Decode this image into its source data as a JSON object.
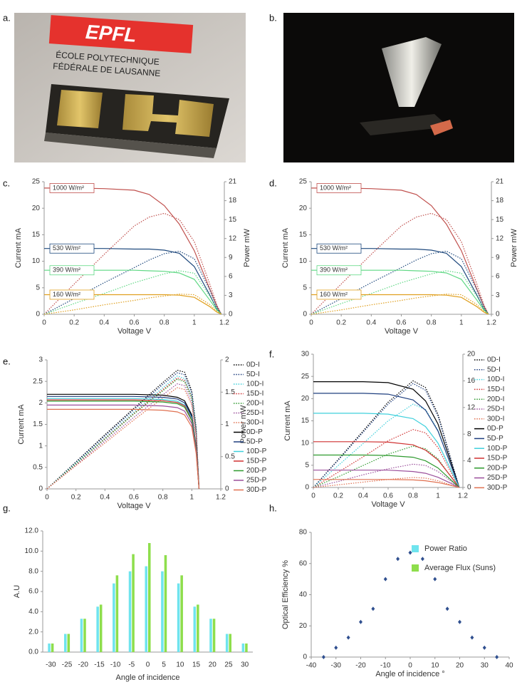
{
  "images": [
    {
      "label": "a.",
      "texts": [
        "EPFL",
        "ÉCOLE POLYTECHNIQUE",
        "FÉDÉRALE DE LAUSANNE"
      ]
    },
    {
      "label": "b."
    }
  ],
  "chart_data": [
    {
      "type": "line",
      "label": "c.",
      "xlabel": "Voltage  V",
      "ylabel": "Current mA",
      "y2label": "Power mW",
      "legend": false,
      "xlim": [
        0,
        1.2
      ],
      "xticks": [
        0,
        0.2,
        0.4,
        0.6,
        0.8,
        1,
        1.2
      ],
      "ylim": [
        0,
        25
      ],
      "yticks": [
        0,
        5,
        10,
        15,
        20,
        25
      ],
      "y2lim": [
        0,
        21
      ],
      "y2ticks": [
        0,
        3,
        6,
        9,
        12,
        15,
        18,
        21
      ],
      "x": [
        0,
        0.2,
        0.4,
        0.6,
        0.7,
        0.8,
        0.9,
        1.0,
        1.1,
        1.15,
        1.18
      ],
      "series": [
        {
          "name": "1000 W/m²",
          "color": "#c0504d",
          "values": [
            23.8,
            23.8,
            23.7,
            23.4,
            22.6,
            20.5,
            17,
            12,
            5,
            1.5,
            0
          ]
        },
        {
          "color": "#c0504d",
          "dash": true,
          "axis": "y2",
          "values": [
            0,
            4.8,
            9.5,
            14,
            15.4,
            16,
            15,
            11.5,
            5,
            1.5,
            0
          ]
        },
        {
          "name": "530 W/m²",
          "color": "#1f497d",
          "values": [
            12.4,
            12.4,
            12.4,
            12.3,
            12.3,
            12.1,
            11.5,
            9,
            3.8,
            1,
            0
          ]
        },
        {
          "color": "#1f497d",
          "dash": true,
          "axis": "y2",
          "values": [
            0,
            2.5,
            5,
            7.4,
            8.6,
            9.6,
            10,
            8.8,
            4,
            1.2,
            0
          ]
        },
        {
          "name": "390 W/m²",
          "color": "#5fd884",
          "values": [
            8.3,
            8.3,
            8.3,
            8.3,
            8.2,
            8.1,
            7.8,
            6.6,
            2.8,
            0.8,
            0
          ]
        },
        {
          "color": "#5fd884",
          "dash": true,
          "axis": "y2",
          "values": [
            0,
            1.7,
            3.3,
            5,
            5.7,
            6.4,
            6.9,
            6.5,
            3,
            0.9,
            0
          ]
        },
        {
          "name": "160 W/m²",
          "color": "#e0a020",
          "values": [
            3.7,
            3.7,
            3.7,
            3.7,
            3.7,
            3.7,
            3.6,
            3.2,
            1.5,
            0.4,
            0
          ]
        },
        {
          "color": "#e0a020",
          "dash": true,
          "axis": "y2",
          "values": [
            0,
            0.7,
            1.5,
            2.2,
            2.6,
            2.9,
            3.2,
            3.1,
            1.6,
            0.5,
            0
          ]
        }
      ]
    },
    {
      "type": "line",
      "label": "d.",
      "xlabel": "Voltage  V",
      "ylabel": "Current mA",
      "y2label": "Power mW",
      "legend": false,
      "xlim": [
        0,
        1.2
      ],
      "xticks": [
        0,
        0.2,
        0.4,
        0.6,
        0.8,
        1,
        1.2
      ],
      "ylim": [
        0,
        25
      ],
      "yticks": [
        0,
        5,
        10,
        15,
        20,
        25
      ],
      "y2lim": [
        0,
        21
      ],
      "y2ticks": [
        0,
        3,
        6,
        9,
        12,
        15,
        18,
        21
      ],
      "x": [
        0,
        0.2,
        0.4,
        0.6,
        0.7,
        0.8,
        0.9,
        1.0,
        1.1,
        1.15,
        1.18
      ],
      "series": [
        {
          "name": "1000 W/m²",
          "color": "#c0504d",
          "values": [
            23.8,
            23.8,
            23.7,
            23.4,
            22.6,
            20.5,
            17,
            12,
            5,
            1.5,
            0
          ]
        },
        {
          "color": "#c0504d",
          "dash": true,
          "axis": "y2",
          "values": [
            0,
            4.8,
            9.5,
            14,
            15.4,
            16,
            15,
            11.5,
            5,
            1.5,
            0
          ]
        },
        {
          "name": "530 W/m²",
          "color": "#1f497d",
          "values": [
            12.4,
            12.4,
            12.4,
            12.3,
            12.3,
            12.1,
            11.5,
            9,
            3.8,
            1,
            0
          ]
        },
        {
          "color": "#1f497d",
          "dash": true,
          "axis": "y2",
          "values": [
            0,
            2.5,
            5,
            7.4,
            8.6,
            9.6,
            10,
            8.8,
            4,
            1.2,
            0
          ]
        },
        {
          "name": "390 W/m²",
          "color": "#5fd884",
          "values": [
            8.3,
            8.3,
            8.3,
            8.3,
            8.2,
            8.1,
            7.8,
            6.6,
            2.8,
            0.8,
            0
          ]
        },
        {
          "color": "#5fd884",
          "dash": true,
          "axis": "y2",
          "values": [
            0,
            1.7,
            3.3,
            5,
            5.7,
            6.4,
            6.9,
            6.5,
            3,
            0.9,
            0
          ]
        },
        {
          "name": "160 W/m²",
          "color": "#e0a020",
          "values": [
            3.7,
            3.7,
            3.7,
            3.7,
            3.7,
            3.7,
            3.6,
            3.2,
            1.5,
            0.4,
            0
          ]
        },
        {
          "color": "#e0a020",
          "dash": true,
          "axis": "y2",
          "values": [
            0,
            0.7,
            1.5,
            2.2,
            2.6,
            2.9,
            3.2,
            3.1,
            1.6,
            0.5,
            0
          ]
        }
      ]
    },
    {
      "type": "line",
      "label": "e.",
      "xlabel": "Voltage V",
      "ylabel": "Current mA",
      "y2label": "Power mW",
      "legend": true,
      "xlim": [
        0,
        1.2
      ],
      "xticks": [
        0,
        0.2,
        0.4,
        0.6,
        0.8,
        1,
        1.2
      ],
      "ylim": [
        0,
        3
      ],
      "yticks": [
        0,
        0.5,
        1,
        1.5,
        2,
        2.5,
        3
      ],
      "y2lim": [
        0,
        2
      ],
      "y2ticks": [
        0,
        0.5,
        1,
        1.5,
        2
      ],
      "x": [
        0,
        0.2,
        0.4,
        0.6,
        0.8,
        0.9,
        0.95,
        1.0,
        1.03,
        1.05
      ],
      "series": [
        {
          "name": "0D-I",
          "color": "#000000",
          "dash": true,
          "axis": "y2",
          "values": [
            0,
            0.42,
            0.84,
            1.25,
            1.65,
            1.84,
            1.81,
            1.52,
            0.95,
            0
          ]
        },
        {
          "name": "5D-I",
          "color": "#1f3f7f",
          "dash": true,
          "axis": "y2",
          "values": [
            0,
            0.41,
            0.82,
            1.23,
            1.62,
            1.8,
            1.77,
            1.49,
            0.93,
            0
          ]
        },
        {
          "name": "10D-I",
          "color": "#3fd0dc",
          "dash": true,
          "axis": "y2",
          "values": [
            0,
            0.4,
            0.79,
            1.19,
            1.57,
            1.75,
            1.71,
            1.44,
            0.9,
            0
          ]
        },
        {
          "name": "15D-I",
          "color": "#d03030",
          "dash": true,
          "axis": "y2",
          "values": [
            0,
            0.39,
            0.78,
            1.17,
            1.54,
            1.72,
            1.68,
            1.42,
            0.89,
            0
          ]
        },
        {
          "name": "20D-I",
          "color": "#2e9a2e",
          "dash": true,
          "axis": "y2",
          "values": [
            0,
            0.39,
            0.77,
            1.16,
            1.52,
            1.7,
            1.66,
            1.4,
            0.88,
            0
          ]
        },
        {
          "name": "25D-I",
          "color": "#9b4f9b",
          "dash": true,
          "axis": "y2",
          "values": [
            0,
            0.37,
            0.74,
            1.11,
            1.46,
            1.63,
            1.6,
            1.34,
            0.84,
            0
          ]
        },
        {
          "name": "30D-I",
          "color": "#e07050",
          "dash": true,
          "axis": "y2",
          "values": [
            0,
            0.36,
            0.71,
            1.07,
            1.41,
            1.57,
            1.54,
            1.3,
            0.81,
            0
          ]
        },
        {
          "name": "0D-P",
          "color": "#000000",
          "values": [
            2.2,
            2.2,
            2.2,
            2.2,
            2.18,
            2.13,
            2.05,
            1.72,
            0.99,
            0
          ]
        },
        {
          "name": "5D-P",
          "color": "#1f3f7f",
          "values": [
            2.15,
            2.15,
            2.15,
            2.15,
            2.13,
            2.09,
            2,
            1.68,
            0.97,
            0
          ]
        },
        {
          "name": "10D-P",
          "color": "#3fd0dc",
          "values": [
            2.1,
            2.1,
            2.1,
            2.1,
            2.08,
            2.04,
            1.95,
            1.64,
            0.95,
            0
          ]
        },
        {
          "name": "15D-P",
          "color": "#d03030",
          "values": [
            2.07,
            2.07,
            2.07,
            2.07,
            2.05,
            2.01,
            1.93,
            1.61,
            0.93,
            0
          ]
        },
        {
          "name": "20D-P",
          "color": "#2e9a2e",
          "values": [
            2.04,
            2.04,
            2.04,
            2.04,
            2.02,
            1.98,
            1.9,
            1.59,
            0.92,
            0
          ]
        },
        {
          "name": "25D-P",
          "color": "#9b4f9b",
          "values": [
            1.95,
            1.95,
            1.95,
            1.95,
            1.93,
            1.89,
            1.81,
            1.52,
            0.88,
            0
          ]
        },
        {
          "name": "30D-P",
          "color": "#e07050",
          "values": [
            1.85,
            1.85,
            1.85,
            1.85,
            1.83,
            1.79,
            1.72,
            1.44,
            0.83,
            0
          ]
        }
      ]
    },
    {
      "type": "line",
      "label": "f.",
      "xlabel": "Voltage V",
      "ylabel": "Current mA",
      "legend": true,
      "xlim": [
        0,
        1.2
      ],
      "xticks": [
        0,
        0.2,
        0.4,
        0.6,
        0.8,
        1,
        1.2
      ],
      "ylim": [
        0,
        30
      ],
      "yticks": [
        0,
        5,
        10,
        15,
        20,
        25,
        30
      ],
      "y2lim": [
        0,
        20
      ],
      "y2ticks": [
        0,
        4,
        8,
        12,
        16,
        20
      ],
      "x": [
        0,
        0.2,
        0.4,
        0.6,
        0.8,
        0.9,
        1.0,
        1.1,
        1.17
      ],
      "series": [
        {
          "name": "0D-I",
          "color": "#000000",
          "dash": true,
          "axis": "y2",
          "values": [
            0,
            4.2,
            8.5,
            12.8,
            16,
            15,
            11,
            4.5,
            0
          ]
        },
        {
          "name": "5D-I",
          "color": "#1f3f7f",
          "dash": true,
          "axis": "y2",
          "values": [
            0,
            4.1,
            8.3,
            12.5,
            15.6,
            14.6,
            10.7,
            4.4,
            0
          ]
        },
        {
          "name": "10D-I",
          "color": "#3fd0dc",
          "dash": true,
          "axis": "y2",
          "values": [
            0,
            3.3,
            6.6,
            10,
            12.5,
            11.7,
            8.6,
            3.5,
            0
          ]
        },
        {
          "name": "15D-I",
          "color": "#d03030",
          "dash": true,
          "axis": "y2",
          "values": [
            0,
            2.3,
            4.6,
            7,
            8.7,
            8.2,
            6,
            2.4,
            0
          ]
        },
        {
          "name": "20D-I",
          "color": "#2e9a2e",
          "dash": true,
          "axis": "y2",
          "values": [
            0,
            1.6,
            3.3,
            5,
            6.2,
            5.8,
            4.3,
            1.7,
            0
          ]
        },
        {
          "name": "25D-I",
          "color": "#9b4f9b",
          "dash": true,
          "axis": "y2",
          "values": [
            0,
            0.9,
            1.9,
            2.8,
            3.5,
            3.3,
            2.4,
            1,
            0
          ]
        },
        {
          "name": "30D-I",
          "color": "#e07050",
          "dash": true,
          "axis": "y2",
          "values": [
            0,
            0.4,
            0.8,
            1.2,
            1.5,
            1.4,
            1,
            0.4,
            0
          ]
        },
        {
          "name": "0D-P",
          "color": "#000000",
          "values": [
            23.8,
            23.8,
            23.8,
            23.6,
            22.1,
            19.5,
            14.3,
            6,
            0
          ]
        },
        {
          "name": "5D-P",
          "color": "#1f3f7f",
          "values": [
            21.2,
            21.2,
            21.2,
            21,
            19.7,
            17.4,
            12.7,
            5.3,
            0
          ]
        },
        {
          "name": "10D-P",
          "color": "#3fd0dc",
          "values": [
            16.7,
            16.7,
            16.7,
            16.5,
            15.5,
            13.7,
            10,
            4.2,
            0
          ]
        },
        {
          "name": "15D-P",
          "color": "#d03030",
          "values": [
            10.3,
            10.3,
            10.3,
            10.2,
            9.6,
            8.4,
            6.2,
            2.6,
            0
          ]
        },
        {
          "name": "20D-P",
          "color": "#2e9a2e",
          "values": [
            7.3,
            7.3,
            7.3,
            7.2,
            6.8,
            6,
            4.4,
            1.8,
            0
          ]
        },
        {
          "name": "25D-P",
          "color": "#9b4f9b",
          "values": [
            3.9,
            3.9,
            3.9,
            3.9,
            3.6,
            3.2,
            2.3,
            1,
            0
          ]
        },
        {
          "name": "30D-P",
          "color": "#e07050",
          "values": [
            1.8,
            1.8,
            1.8,
            1.8,
            1.7,
            1.5,
            1.1,
            0.5,
            0
          ]
        }
      ]
    },
    {
      "type": "bar",
      "label": "g.",
      "xlabel": "Angle of incidence",
      "ylabel": "A.U",
      "legend": true,
      "categories": [
        "-30",
        "-25",
        "-20",
        "-15",
        "-10",
        "-5",
        "0",
        "5",
        "10",
        "15",
        "20",
        "25",
        "30"
      ],
      "ylim": [
        0,
        12
      ],
      "yticks": [
        {
          "value": 0,
          "label": "0.0"
        },
        {
          "value": 2,
          "label": "2.0"
        },
        {
          "value": 4,
          "label": "4.0"
        },
        {
          "value": 6,
          "label": "6.0"
        },
        {
          "value": 8,
          "label": "8.0"
        },
        {
          "value": 10,
          "label": "10.0"
        },
        {
          "value": 12,
          "label": "12.0"
        }
      ],
      "series": [
        {
          "name": "Power Ratio",
          "color": "#6fe4ee",
          "values": [
            0.85,
            1.8,
            3.3,
            4.5,
            6.8,
            8.0,
            8.5,
            8.0,
            6.8,
            4.5,
            3.3,
            1.8,
            0.85
          ]
        },
        {
          "name": "Average Flux (Suns)",
          "color": "#8ede4c",
          "values": [
            0.85,
            1.8,
            3.3,
            4.7,
            7.6,
            9.7,
            10.8,
            9.6,
            7.6,
            4.7,
            3.3,
            1.8,
            0.85
          ]
        }
      ]
    },
    {
      "type": "scatter",
      "label": "h.",
      "xlabel": "Angle of incidence °",
      "ylabel": "Optical Efficiency %",
      "legend": false,
      "xlim": [
        -40,
        40
      ],
      "xticks": [
        -40,
        -30,
        -20,
        -10,
        0,
        10,
        20,
        30,
        40
      ],
      "ylim": [
        0,
        80
      ],
      "yticks": [
        0,
        20,
        40,
        60,
        80
      ],
      "x": [
        -35,
        -30,
        -25,
        -20,
        -15,
        -10,
        -5,
        0,
        5,
        10,
        15,
        20,
        25,
        30,
        35
      ],
      "series": [
        {
          "color": "#2f4f8f",
          "values": [
            0,
            6,
            12.5,
            22.5,
            31,
            50,
            63,
            67,
            63,
            50,
            31,
            22.5,
            12.5,
            6,
            0
          ]
        }
      ]
    }
  ]
}
